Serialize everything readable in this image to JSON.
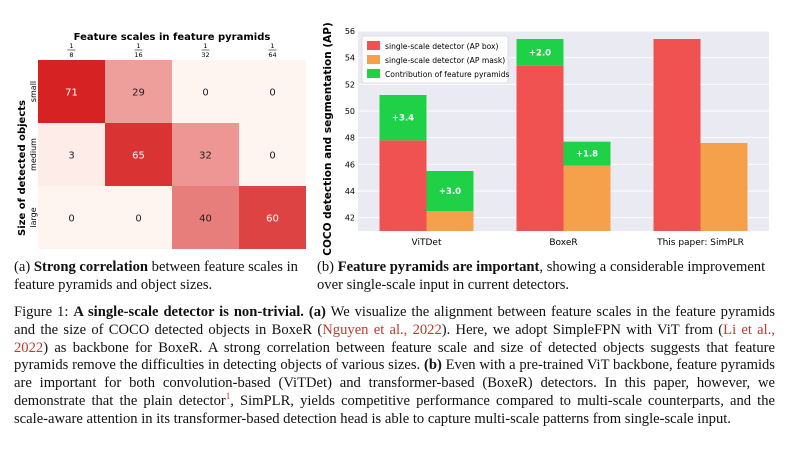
{
  "heatmap": {
    "title": "Feature scales in feature pyramids",
    "ylabel": "Size of detected objects",
    "columns": [
      {
        "num": "1",
        "den": "8"
      },
      {
        "num": "1",
        "den": "16"
      },
      {
        "num": "1",
        "den": "32"
      },
      {
        "num": "1",
        "den": "64"
      }
    ],
    "rows": [
      "small",
      "medium",
      "large"
    ],
    "values": [
      [
        71,
        29,
        0,
        0
      ],
      [
        3,
        65,
        32,
        0
      ],
      [
        0,
        0,
        40,
        60
      ]
    ]
  },
  "chart_data": [
    {
      "type": "heatmap",
      "title": "Feature scales in feature pyramids",
      "ylabel": "Size of detected objects",
      "x_ticks": [
        "1/8",
        "1/16",
        "1/32",
        "1/64"
      ],
      "y_ticks": [
        "small",
        "medium",
        "large"
      ],
      "values": [
        [
          71,
          29,
          0,
          0
        ],
        [
          3,
          65,
          32,
          0
        ],
        [
          0,
          0,
          40,
          60
        ]
      ]
    },
    {
      "type": "bar",
      "ylabel": "COCO detection and segmentation (AP)",
      "categories": [
        "ViTDet",
        "BoxeR",
        "This paper: SimPLR"
      ],
      "ylim": [
        41,
        56
      ],
      "yticks": [
        42,
        44,
        46,
        48,
        50,
        52,
        54,
        56
      ],
      "grid": true,
      "legend_position": "top-left",
      "series": [
        {
          "name": "single-scale detector (AP box)",
          "color": "#f05252",
          "values": [
            47.8,
            53.4,
            55.4
          ],
          "gain": [
            3.4,
            2.0,
            null
          ]
        },
        {
          "name": "single-scale detector (AP mask)",
          "color": "#f5a04a",
          "values": [
            42.5,
            45.9,
            47.6
          ],
          "gain": [
            3.0,
            1.8,
            null
          ]
        }
      ],
      "gain_series": {
        "name": "Contribution of feature pyramids",
        "color": "#1fd147"
      },
      "gain_labels": [
        [
          "+3.4",
          "+3.0"
        ],
        [
          "+2.0",
          "+1.8"
        ],
        [
          null,
          null
        ]
      ]
    }
  ],
  "captions": {
    "a": {
      "label": "(a)",
      "bold": "Strong correlation",
      "rest": " between feature scales in feature pyramids and object sizes."
    },
    "b": {
      "label": "(b)",
      "bold": "Feature pyramids are important",
      "rest": ", showing a considerable improvement over single-scale input in current detectors."
    }
  },
  "figure_caption": {
    "label": "Figure 1:",
    "bold": "A single-scale detector is non-trivial.",
    "s1": "(a)",
    "t1": " We visualize the alignment between feature scales in the feature pyramids and the size of COCO detected objects in BoxeR (",
    "c1": "Nguyen et al., 2022",
    "t2": "). Here, we adopt SimpleFPN with ViT from (",
    "c2": "Li et al., 2022",
    "t3": ") as backbone for BoxeR. A strong correlation between feature scale and size of detected objects suggests that feature pyramids remove the difficulties in detecting objects of various sizes.",
    "s2": "(b)",
    "t4": " Even with a pre-trained ViT backbone, feature pyramids are important for both convolution-based (ViTDet) and transformer-based (BoxeR) detectors. In this paper, however, we demonstrate that the plain detector",
    "footnote": "1",
    "t5": ", SimPLR, yields competitive performance compared to multi-scale counterparts, and the scale-aware attention in its transformer-based detection head is able to capture multi-scale patterns from single-scale input."
  }
}
